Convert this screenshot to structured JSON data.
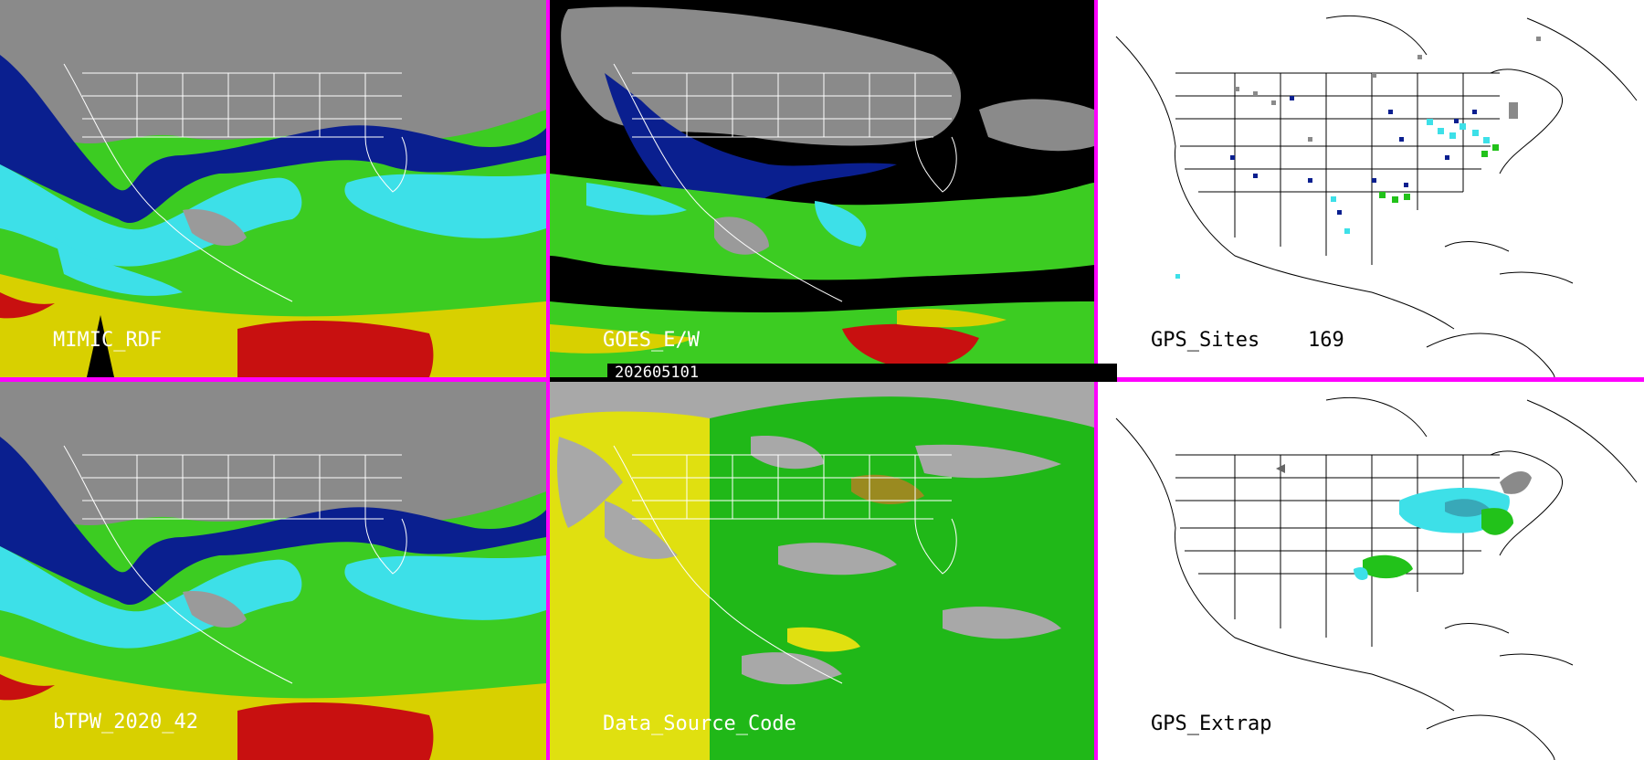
{
  "panels": [
    {
      "id": "mimic",
      "label": "MIMIC_RDF"
    },
    {
      "id": "goes",
      "label": "GOES_E/W"
    },
    {
      "id": "gps-sites",
      "label": "GPS_Sites",
      "count": "169"
    },
    {
      "id": "btpw",
      "label": "bTPW_2020_42"
    },
    {
      "id": "source",
      "label": "Data_Source_Code"
    },
    {
      "id": "extrap",
      "label": "GPS_Extrap"
    }
  ],
  "timestamp": "202605101",
  "colors": {
    "divider": "#ff00ff",
    "tpw_gray": "#8a8a8a",
    "tpw_navy": "#0a1f8f",
    "tpw_cyan": "#3de0e8",
    "tpw_green": "#22c21a",
    "tpw_yellow": "#d8d000",
    "tpw_red": "#c81010",
    "source_gray": "#a8a8a8",
    "source_yellow": "#e0e010",
    "source_green": "#20b818"
  }
}
